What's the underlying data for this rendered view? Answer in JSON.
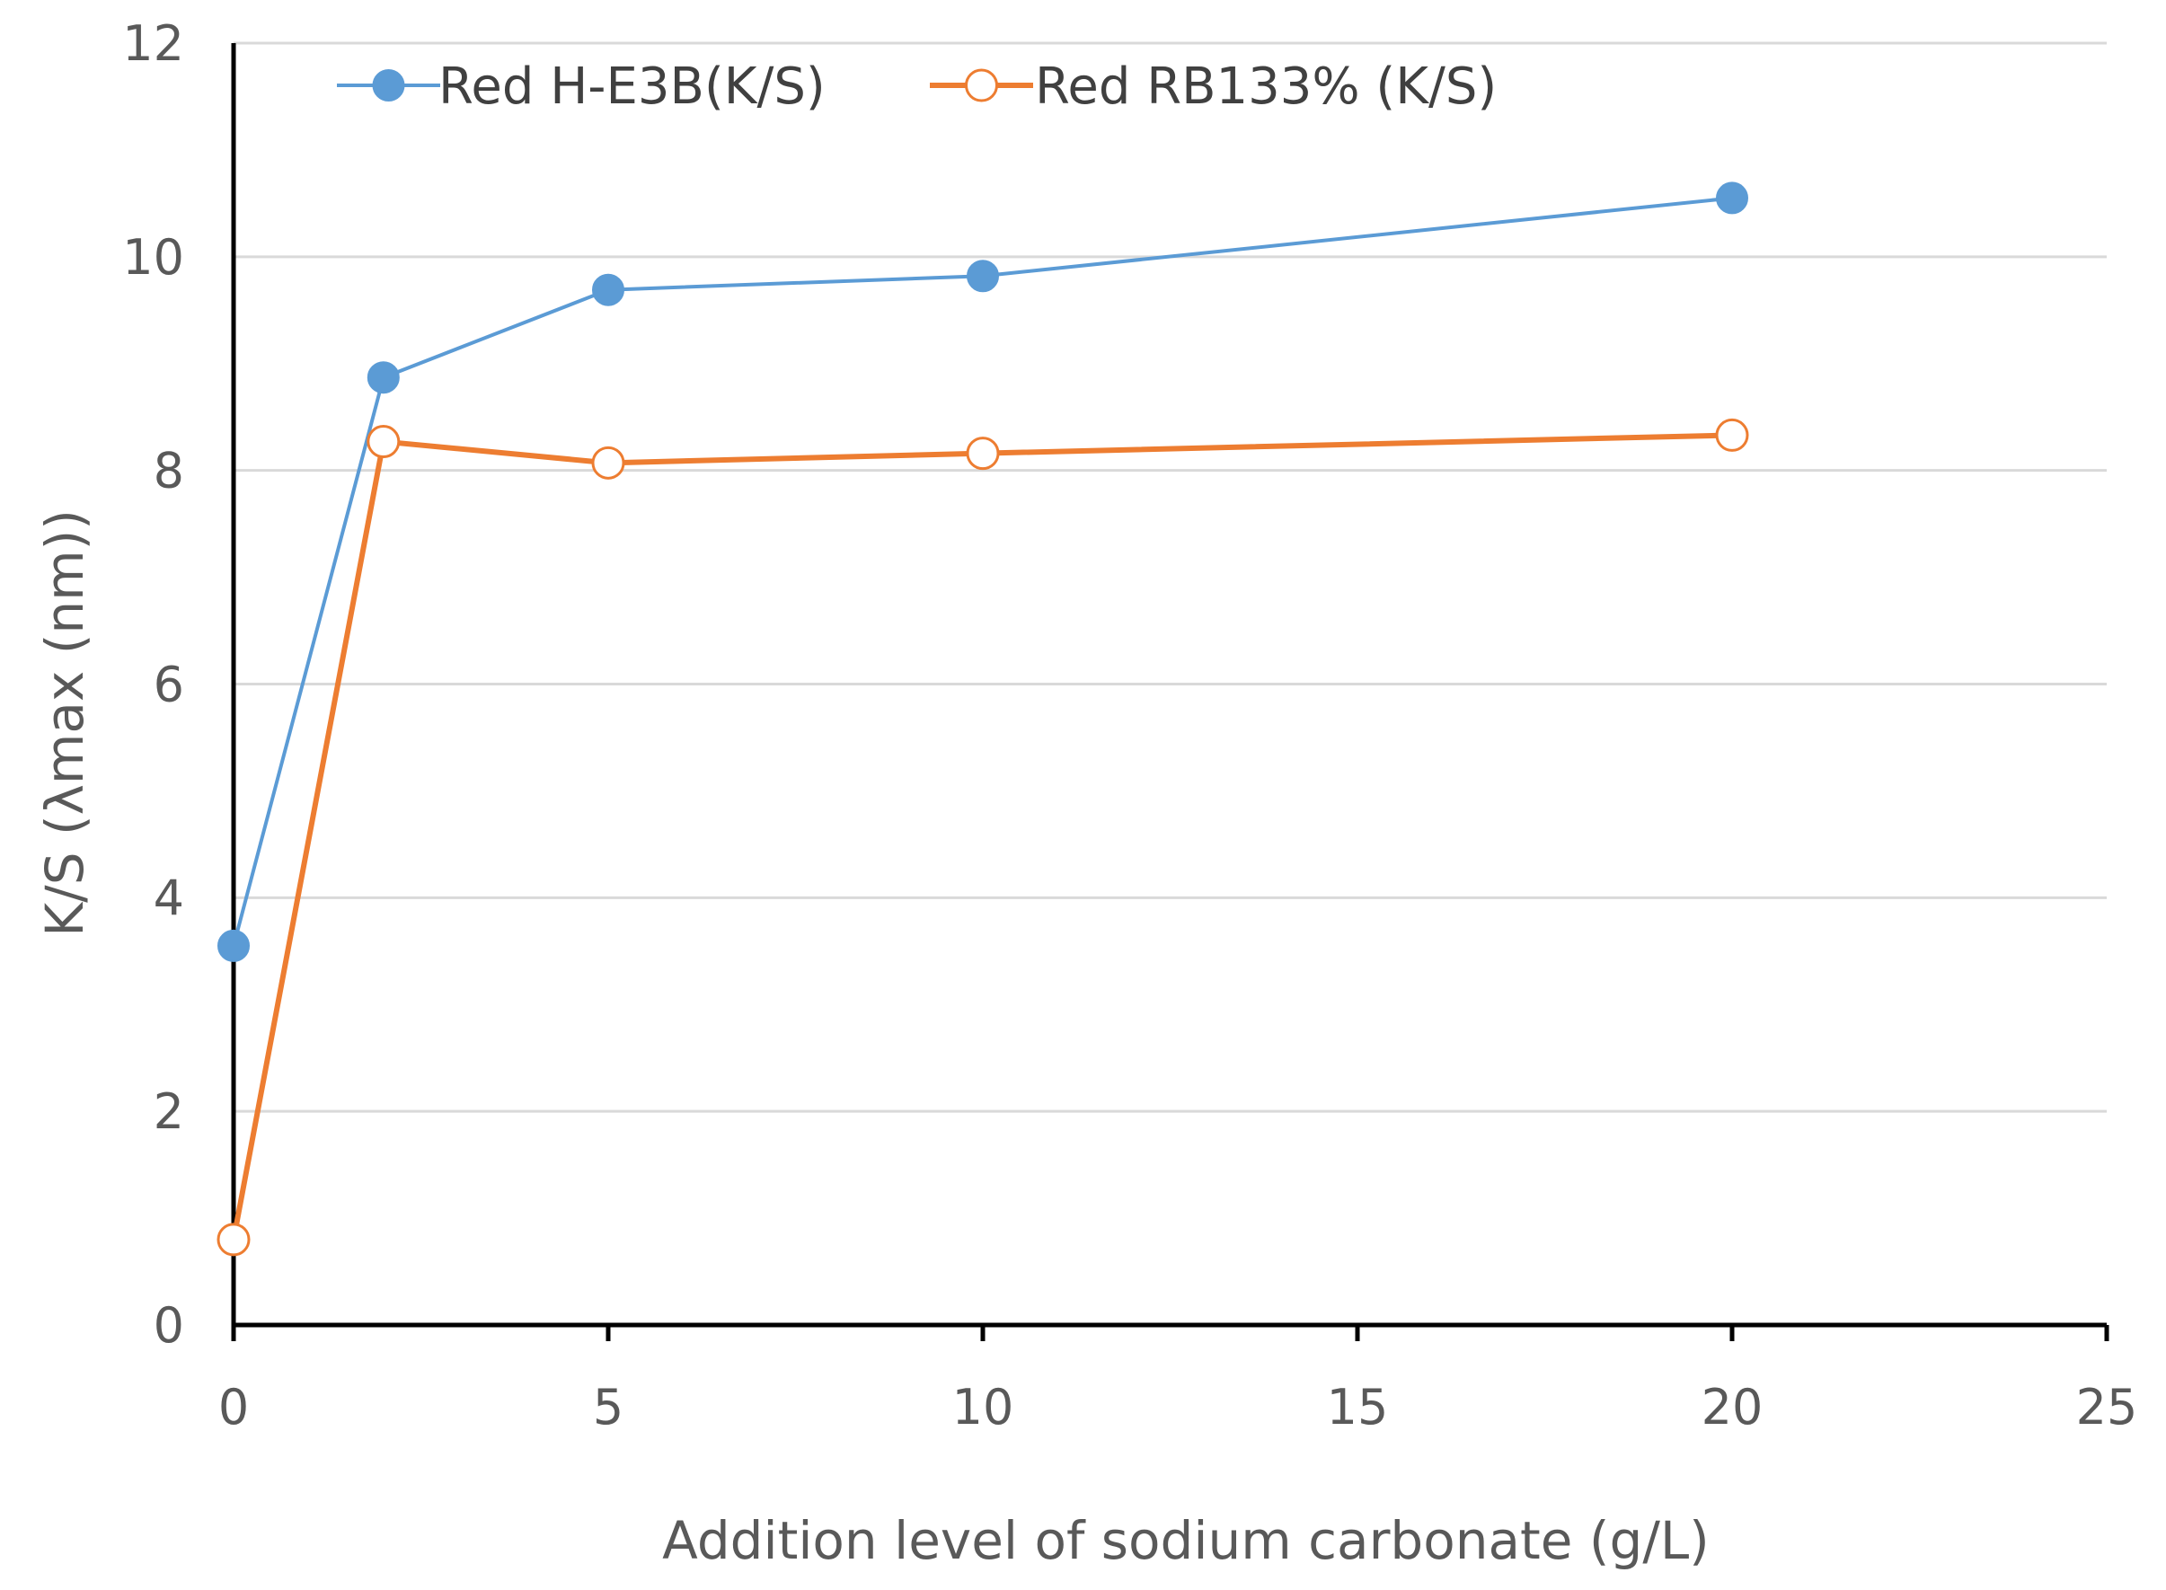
{
  "chart_data": {
    "type": "line",
    "title": "",
    "xlabel": "Addition level of sodium carbonate (g/L)",
    "ylabel": "K/S (λmax (nm))",
    "xlim": [
      0,
      25
    ],
    "ylim": [
      0,
      12
    ],
    "xticks": [
      0,
      5,
      10,
      15,
      20,
      25
    ],
    "yticks": [
      0,
      2,
      4,
      6,
      8,
      10,
      12
    ],
    "grid": "horizontal",
    "legend_position": "top",
    "series": [
      {
        "name": "Red H-E3B(K/S)",
        "color": "#5b9bd5",
        "marker": "filled-circle",
        "x": [
          0,
          2,
          5,
          10,
          20
        ],
        "y": [
          3.55,
          8.87,
          9.69,
          9.82,
          10.55
        ]
      },
      {
        "name": "Red RB133% (K/S)",
        "color": "#ed7d31",
        "marker": "hollow-circle",
        "x": [
          0,
          2,
          5,
          10,
          20
        ],
        "y": [
          0.8,
          8.27,
          8.07,
          8.16,
          8.33
        ]
      }
    ],
    "colors": {
      "axis": "#000000",
      "grid": "#d9d9d9",
      "text": "#595959"
    }
  }
}
